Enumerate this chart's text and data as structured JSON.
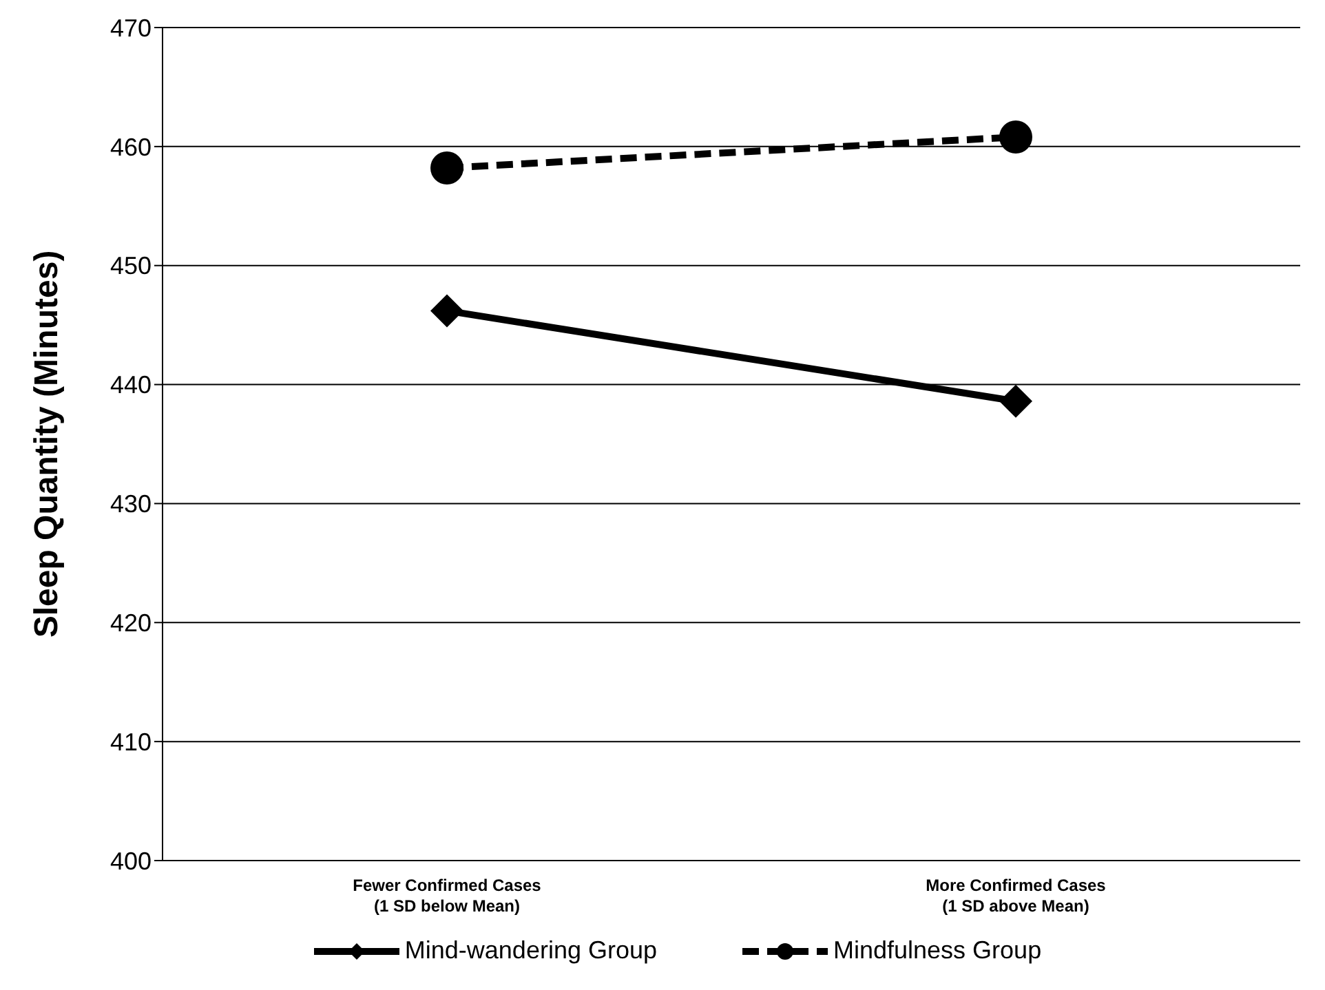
{
  "chart_data": {
    "type": "line",
    "ylabel": "Sleep Quantity (Minutes)",
    "categories": [
      "Fewer Confirmed Cases\n(1 SD below Mean)",
      "More Confirmed Cases\n(1 SD above Mean)"
    ],
    "series": [
      {
        "name": "Mind-wandering Group",
        "color": "#000000",
        "values": [
          446.2,
          438.6
        ],
        "marker": "diamond",
        "line_style": "solid"
      },
      {
        "name": "Mindfulness Group",
        "color": "#000000",
        "values": [
          458.2,
          460.8
        ],
        "marker": "circle",
        "line_style": "dashed"
      }
    ],
    "ylim": [
      400,
      470
    ],
    "yticks": [
      400,
      410,
      420,
      430,
      440,
      450,
      460,
      470
    ],
    "grid": "y",
    "legend": "bottom"
  }
}
